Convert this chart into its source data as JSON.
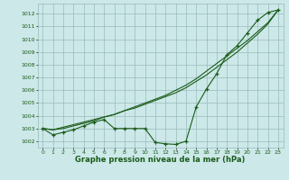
{
  "x": [
    0,
    1,
    2,
    3,
    4,
    5,
    6,
    7,
    8,
    9,
    10,
    11,
    12,
    13,
    14,
    15,
    16,
    17,
    18,
    19,
    20,
    21,
    22,
    23
  ],
  "line_markers": [
    1003.0,
    1002.5,
    1002.7,
    1002.9,
    1003.2,
    1003.5,
    1003.7,
    1003.0,
    1003.0,
    1003.0,
    1003.0,
    1001.9,
    1001.8,
    1001.75,
    1002.0,
    1004.7,
    1006.1,
    1007.3,
    1008.8,
    1009.5,
    1010.5,
    1011.5,
    1012.1,
    1012.3
  ],
  "line_smooth1": [
    1003.0,
    1002.9,
    1003.1,
    1003.3,
    1003.5,
    1003.7,
    1003.9,
    1004.1,
    1004.4,
    1004.6,
    1004.9,
    1005.2,
    1005.5,
    1005.8,
    1006.2,
    1006.7,
    1007.2,
    1007.8,
    1008.4,
    1009.0,
    1009.7,
    1010.4,
    1011.2,
    1012.3
  ],
  "line_smooth2": [
    1003.0,
    1002.9,
    1003.0,
    1003.2,
    1003.4,
    1003.6,
    1003.9,
    1004.1,
    1004.4,
    1004.7,
    1005.0,
    1005.3,
    1005.6,
    1006.0,
    1006.4,
    1006.9,
    1007.5,
    1008.1,
    1008.7,
    1009.3,
    1009.9,
    1010.6,
    1011.3,
    1012.3
  ],
  "ylim": [
    1001.5,
    1012.8
  ],
  "yticks": [
    1002,
    1003,
    1004,
    1005,
    1006,
    1007,
    1008,
    1009,
    1010,
    1011,
    1012
  ],
  "xticks": [
    0,
    1,
    2,
    3,
    4,
    5,
    6,
    7,
    8,
    9,
    10,
    11,
    12,
    13,
    14,
    15,
    16,
    17,
    18,
    19,
    20,
    21,
    22,
    23
  ],
  "bg_color": "#cce8e8",
  "line_color": "#1a5c1a",
  "grid_color": "#99bbbb",
  "xlabel": "Graphe pression niveau de la mer (hPa)"
}
